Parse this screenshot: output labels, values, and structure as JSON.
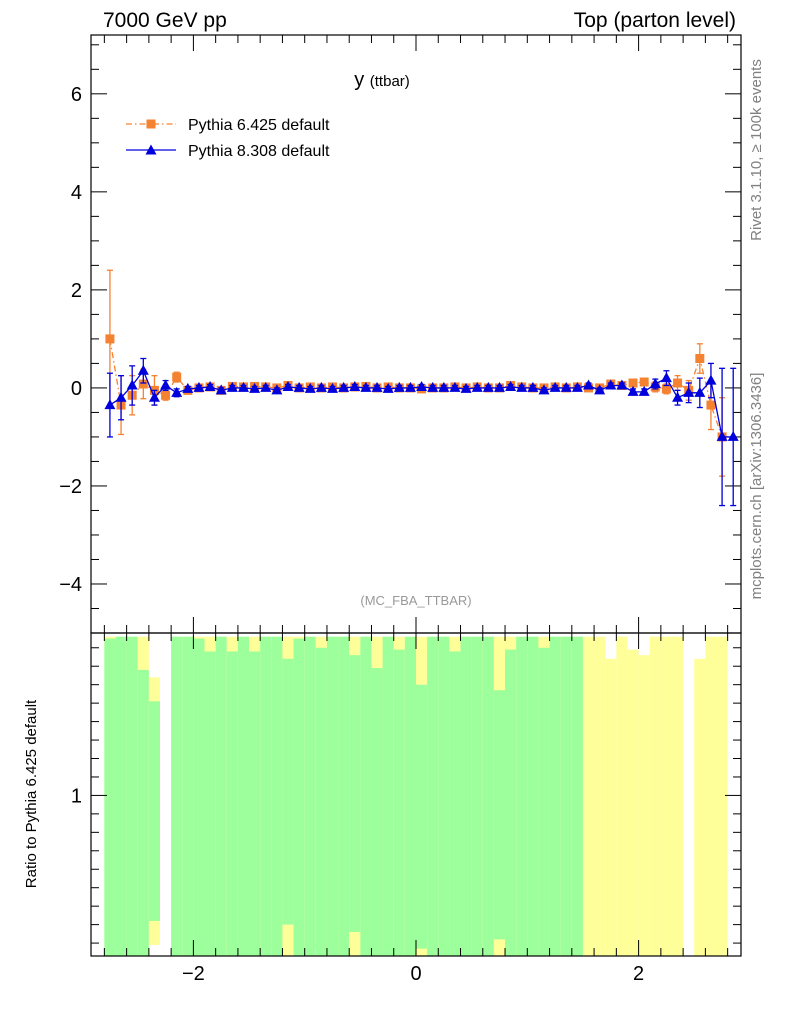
{
  "header": {
    "left": "7000 GeV pp",
    "right": "Top (parton level)"
  },
  "side_text": {
    "rivet": "Rivet 3.1.10, ≥ 100k events",
    "mcplots": "mcplots.cern.ch [arXiv:1306.3436]"
  },
  "colors": {
    "pythia6": "#f58231",
    "pythia8": "#0000dd",
    "band_green": "#9cff9c",
    "band_yellow": "#ffff99"
  },
  "chart_data": [
    {
      "type": "scatter",
      "title": "y",
      "title_suffix": "(ttbar)",
      "watermark": "(MC_FBA_TTBAR)",
      "xlim": [
        -2.92,
        2.92
      ],
      "ylim": [
        -5.0,
        7.2
      ],
      "yticks": [
        -4,
        -2,
        0,
        2,
        4,
        6
      ],
      "legend_position": "top-left",
      "series": [
        {
          "name": "Pythia 6.425 default",
          "marker": "square",
          "line": "dash-dot",
          "x": [
            -2.75,
            -2.65,
            -2.55,
            -2.45,
            -2.35,
            -2.25,
            -2.15,
            -2.05,
            -1.95,
            -1.85,
            -1.75,
            -1.65,
            -1.55,
            -1.45,
            -1.35,
            -1.25,
            -1.15,
            -1.05,
            -0.95,
            -0.85,
            -0.75,
            -0.65,
            -0.55,
            -0.45,
            -0.35,
            -0.25,
            -0.15,
            -0.05,
            0.05,
            0.15,
            0.25,
            0.35,
            0.45,
            0.55,
            0.65,
            0.75,
            0.85,
            0.95,
            1.05,
            1.15,
            1.25,
            1.35,
            1.45,
            1.55,
            1.65,
            1.75,
            1.85,
            1.95,
            2.05,
            2.15,
            2.25,
            2.35,
            2.45,
            2.55,
            2.65,
            2.75
          ],
          "y": [
            1.0,
            -0.35,
            -0.15,
            0.08,
            -0.05,
            -0.15,
            0.22,
            -0.05,
            0.0,
            0.02,
            -0.05,
            0.03,
            0.02,
            0.03,
            0.02,
            0.0,
            0.05,
            0.0,
            0.02,
            0.0,
            0.02,
            0.0,
            0.02,
            0.03,
            0.0,
            0.02,
            0.0,
            0.0,
            -0.02,
            0.0,
            0.0,
            0.02,
            0.0,
            0.02,
            0.0,
            0.0,
            0.05,
            0.02,
            0.0,
            0.0,
            0.02,
            0.0,
            0.02,
            0.0,
            0.0,
            0.08,
            0.05,
            0.1,
            0.12,
            0.02,
            -0.02,
            0.1,
            -0.05,
            0.6,
            -0.35,
            -1.0
          ],
          "err": [
            1.4,
            0.6,
            0.4,
            0.3,
            0.3,
            0.1,
            0.1,
            0.05,
            0.05,
            0.05,
            0.05,
            0.05,
            0.05,
            0.05,
            0.05,
            0.05,
            0.05,
            0.05,
            0.05,
            0.05,
            0.05,
            0.05,
            0.05,
            0.05,
            0.05,
            0.05,
            0.05,
            0.05,
            0.05,
            0.05,
            0.05,
            0.05,
            0.05,
            0.05,
            0.05,
            0.05,
            0.05,
            0.05,
            0.05,
            0.05,
            0.05,
            0.05,
            0.05,
            0.05,
            0.05,
            0.05,
            0.05,
            0.05,
            0.05,
            0.1,
            0.1,
            0.15,
            0.2,
            0.3,
            0.5,
            0.8
          ]
        },
        {
          "name": "Pythia 8.308 default",
          "marker": "triangle",
          "line": "solid",
          "x": [
            -2.75,
            -2.65,
            -2.55,
            -2.45,
            -2.35,
            -2.25,
            -2.15,
            -2.05,
            -1.95,
            -1.85,
            -1.75,
            -1.65,
            -1.55,
            -1.45,
            -1.35,
            -1.25,
            -1.15,
            -1.05,
            -0.95,
            -0.85,
            -0.75,
            -0.65,
            -0.55,
            -0.45,
            -0.35,
            -0.25,
            -0.15,
            -0.05,
            0.05,
            0.15,
            0.25,
            0.35,
            0.45,
            0.55,
            0.65,
            0.75,
            0.85,
            0.95,
            1.05,
            1.15,
            1.25,
            1.35,
            1.45,
            1.55,
            1.65,
            1.75,
            1.85,
            1.95,
            2.05,
            2.15,
            2.25,
            2.35,
            2.45,
            2.55,
            2.65,
            2.75,
            2.85
          ],
          "y": [
            -0.35,
            -0.2,
            0.05,
            0.35,
            -0.2,
            0.05,
            -0.1,
            -0.02,
            0.0,
            0.02,
            -0.05,
            0.0,
            0.0,
            -0.02,
            0.0,
            -0.05,
            0.02,
            0.0,
            -0.02,
            0.0,
            -0.02,
            0.0,
            0.02,
            0.0,
            0.0,
            -0.02,
            0.0,
            0.0,
            0.02,
            0.0,
            0.0,
            0.0,
            -0.02,
            0.0,
            0.0,
            0.0,
            0.02,
            0.0,
            0.0,
            -0.05,
            0.0,
            0.0,
            0.0,
            0.05,
            -0.05,
            0.05,
            0.05,
            -0.08,
            -0.08,
            0.08,
            0.2,
            -0.2,
            -0.1,
            -0.1,
            0.15,
            -1.0,
            -1.0
          ],
          "err": [
            0.65,
            0.45,
            0.4,
            0.25,
            0.15,
            0.1,
            0.08,
            0.05,
            0.05,
            0.05,
            0.05,
            0.05,
            0.05,
            0.05,
            0.05,
            0.05,
            0.05,
            0.05,
            0.05,
            0.05,
            0.05,
            0.05,
            0.05,
            0.05,
            0.05,
            0.05,
            0.05,
            0.05,
            0.05,
            0.05,
            0.05,
            0.05,
            0.05,
            0.05,
            0.05,
            0.05,
            0.05,
            0.05,
            0.05,
            0.05,
            0.05,
            0.05,
            0.05,
            0.05,
            0.05,
            0.05,
            0.05,
            0.06,
            0.06,
            0.1,
            0.15,
            0.15,
            0.2,
            0.3,
            0.35,
            1.4,
            1.4
          ]
        }
      ]
    },
    {
      "type": "area",
      "ylabel": "Ratio to Pythia 6.425 default",
      "xlim": [
        -2.92,
        2.92
      ],
      "xticks": [
        -2,
        0,
        2
      ],
      "ylim": [
        0.13,
        1.88
      ],
      "yticks": [
        1
      ],
      "bins": [
        {
          "x0": -2.8,
          "x1": -2.7,
          "yellow": [
            0.13,
            1.86
          ],
          "green": [
            0.13,
            1.85
          ]
        },
        {
          "x0": -2.7,
          "x1": -2.6,
          "yellow": [
            0.13,
            1.86
          ],
          "green": [
            0.13,
            1.86
          ]
        },
        {
          "x0": -2.6,
          "x1": -2.5,
          "yellow": [
            0.13,
            1.86
          ],
          "green": [
            0.13,
            1.86
          ]
        },
        {
          "x0": -2.5,
          "x1": -2.4,
          "yellow": [
            0.13,
            1.86
          ],
          "green": [
            0.13,
            1.68
          ]
        },
        {
          "x0": -2.4,
          "x1": -2.3,
          "yellow": [
            0.19,
            1.64
          ],
          "green": [
            0.32,
            1.51
          ]
        },
        {
          "x0": -2.2,
          "x1": -2.1,
          "yellow": [
            0.13,
            1.86
          ],
          "green": [
            0.13,
            1.86
          ]
        },
        {
          "x0": -2.1,
          "x1": -2.0,
          "yellow": [
            0.13,
            1.86
          ],
          "green": [
            0.13,
            1.86
          ]
        },
        {
          "x0": -2.0,
          "x1": -1.9,
          "yellow": [
            0.13,
            1.86
          ],
          "green": [
            0.13,
            1.85
          ]
        },
        {
          "x0": -1.9,
          "x1": -1.8,
          "yellow": [
            0.13,
            1.86
          ],
          "green": [
            0.13,
            1.86
          ]
        },
        {
          "x0": -1.8,
          "x1": -1.7,
          "yellow": [
            0.13,
            1.86
          ],
          "green": [
            0.13,
            1.86
          ]
        },
        {
          "x0": -1.7,
          "x1": -1.6,
          "yellow": [
            0.13,
            1.86
          ],
          "green": [
            0.13,
            1.86
          ]
        },
        {
          "x0": -1.6,
          "x1": -1.5,
          "yellow": [
            0.13,
            1.86
          ],
          "green": [
            0.13,
            1.86
          ]
        },
        {
          "x0": -1.5,
          "x1": -1.4,
          "yellow": [
            0.13,
            1.86
          ],
          "green": [
            0.13,
            1.86
          ]
        },
        {
          "x0": -1.4,
          "x1": -1.3,
          "yellow": [
            0.13,
            1.86
          ],
          "green": [
            0.13,
            1.86
          ]
        },
        {
          "x0": -1.3,
          "x1": -1.2,
          "yellow": [
            0.13,
            1.86
          ],
          "green": [
            0.13,
            1.86
          ]
        },
        {
          "x0": -1.2,
          "x1": -1.1,
          "yellow": [
            0.13,
            1.86
          ],
          "green": [
            0.13,
            1.86
          ]
        },
        {
          "x0": -1.1,
          "x1": -1.0,
          "yellow": [
            0.13,
            1.86
          ],
          "green": [
            0.13,
            1.86
          ]
        },
        {
          "x0": -1.0,
          "x1": -0.9,
          "yellow": [
            0.13,
            1.86
          ],
          "green": [
            0.13,
            1.86
          ]
        },
        {
          "x0": -0.9,
          "x1": -0.8,
          "yellow": [
            0.13,
            1.86
          ],
          "green": [
            0.13,
            1.86
          ]
        },
        {
          "x0": -0.8,
          "x1": -0.7,
          "yellow": [
            0.13,
            1.86
          ],
          "green": [
            0.13,
            1.86
          ]
        },
        {
          "x0": -0.7,
          "x1": -0.6,
          "yellow": [
            0.13,
            1.86
          ],
          "green": [
            0.13,
            1.86
          ]
        },
        {
          "x0": -0.6,
          "x1": -0.5,
          "yellow": [
            0.13,
            1.86
          ],
          "green": [
            0.13,
            1.86
          ]
        },
        {
          "x0": -0.5,
          "x1": -0.4,
          "yellow": [
            0.13,
            1.86
          ],
          "green": [
            0.13,
            1.86
          ]
        },
        {
          "x0": -0.4,
          "x1": -0.3,
          "yellow": [
            0.13,
            1.86
          ],
          "green": [
            0.13,
            1.86
          ]
        },
        {
          "x0": -0.3,
          "x1": -0.2,
          "yellow": [
            0.13,
            1.86
          ],
          "green": [
            0.13,
            1.86
          ]
        },
        {
          "x0": -0.2,
          "x1": -0.1,
          "yellow": [
            0.13,
            1.86
          ],
          "green": [
            0.13,
            1.86
          ]
        },
        {
          "x0": -0.1,
          "x1": 0.0,
          "yellow": [
            0.13,
            1.86
          ],
          "green": [
            0.13,
            1.86
          ]
        },
        {
          "x0": 0.0,
          "x1": 0.1,
          "yellow": [
            0.13,
            1.86
          ],
          "green": [
            0.13,
            1.86
          ]
        },
        {
          "x0": 0.1,
          "x1": 0.2,
          "yellow": [
            0.13,
            1.86
          ],
          "green": [
            0.13,
            1.86
          ]
        },
        {
          "x0": 0.2,
          "x1": 0.3,
          "yellow": [
            0.13,
            1.86
          ],
          "green": [
            0.13,
            1.86
          ]
        },
        {
          "x0": 0.3,
          "x1": 0.4,
          "yellow": [
            0.13,
            1.86
          ],
          "green": [
            0.13,
            1.86
          ]
        },
        {
          "x0": 0.4,
          "x1": 0.5,
          "yellow": [
            0.13,
            1.86
          ],
          "green": [
            0.13,
            1.86
          ]
        },
        {
          "x0": 0.5,
          "x1": 0.6,
          "yellow": [
            0.13,
            1.86
          ],
          "green": [
            0.13,
            1.86
          ]
        },
        {
          "x0": 0.6,
          "x1": 0.7,
          "yellow": [
            0.13,
            1.86
          ],
          "green": [
            0.13,
            1.86
          ]
        },
        {
          "x0": 0.7,
          "x1": 0.8,
          "yellow": [
            0.13,
            1.86
          ],
          "green": [
            0.13,
            1.86
          ]
        },
        {
          "x0": 0.8,
          "x1": 0.9,
          "yellow": [
            0.13,
            1.86
          ],
          "green": [
            0.13,
            1.86
          ]
        },
        {
          "x0": 0.9,
          "x1": 1.0,
          "yellow": [
            0.13,
            1.86
          ],
          "green": [
            0.13,
            1.86
          ]
        },
        {
          "x0": 1.0,
          "x1": 1.1,
          "yellow": [
            0.13,
            1.86
          ],
          "green": [
            0.13,
            1.86
          ]
        },
        {
          "x0": 1.1,
          "x1": 1.2,
          "yellow": [
            0.13,
            1.86
          ],
          "green": [
            0.13,
            1.86
          ]
        },
        {
          "x0": 1.2,
          "x1": 1.3,
          "yellow": [
            0.13,
            1.86
          ],
          "green": [
            0.13,
            1.86
          ]
        },
        {
          "x0": 1.3,
          "x1": 1.4,
          "yellow": [
            0.13,
            1.86
          ],
          "green": [
            0.13,
            1.86
          ]
        },
        {
          "x0": 1.4,
          "x1": 1.5,
          "yellow": [
            0.13,
            1.86
          ],
          "green": [
            0.13,
            1.86
          ]
        },
        {
          "x0": 1.5,
          "x1": 1.6,
          "yellow": [
            0.13,
            1.86
          ],
          "green": null
        },
        {
          "x0": 1.6,
          "x1": 1.7,
          "yellow": [
            0.13,
            1.86
          ],
          "green": null
        },
        {
          "x0": 1.7,
          "x1": 1.8,
          "yellow": [
            0.13,
            1.74
          ],
          "green": null
        },
        {
          "x0": 1.8,
          "x1": 1.9,
          "yellow": [
            0.13,
            1.86
          ],
          "green": null
        },
        {
          "x0": 1.9,
          "x1": 2.0,
          "yellow": [
            0.13,
            1.79
          ],
          "green": null
        },
        {
          "x0": 2.0,
          "x1": 2.1,
          "yellow": [
            0.13,
            1.76
          ],
          "green": null
        },
        {
          "x0": 2.1,
          "x1": 2.2,
          "yellow": [
            0.13,
            1.86
          ],
          "green": null
        },
        {
          "x0": 2.2,
          "x1": 2.3,
          "yellow": [
            0.13,
            1.86
          ],
          "green": null
        },
        {
          "x0": 2.3,
          "x1": 2.4,
          "yellow": [
            0.13,
            1.86
          ],
          "green": null
        },
        {
          "x0": 2.5,
          "x1": 2.6,
          "yellow": [
            0.13,
            1.74
          ],
          "green": null
        },
        {
          "x0": 2.6,
          "x1": 2.7,
          "yellow": [
            0.13,
            1.86
          ],
          "green": null
        },
        {
          "x0": 2.7,
          "x1": 2.8,
          "yellow": [
            0.13,
            1.86
          ],
          "green": null
        }
      ],
      "green_notches": [
        {
          "x0": -1.9,
          "x1": -1.8,
          "top": 1.78
        },
        {
          "x0": -1.7,
          "x1": -1.6,
          "top": 1.78
        },
        {
          "x0": -1.5,
          "x1": -1.4,
          "top": 1.78
        },
        {
          "x0": -1.2,
          "x1": -1.1,
          "top": 1.74
        },
        {
          "x0": -1.1,
          "x1": -1.0,
          "top": 1.85
        },
        {
          "x0": -0.9,
          "x1": -0.8,
          "top": 1.8
        },
        {
          "x0": -0.6,
          "x1": -0.5,
          "top": 1.76
        },
        {
          "x0": -0.4,
          "x1": -0.3,
          "top": 1.69
        },
        {
          "x0": -0.2,
          "x1": -0.1,
          "top": 1.79
        },
        {
          "x0": 0.0,
          "x1": 0.1,
          "top": 1.6
        },
        {
          "x0": 0.3,
          "x1": 0.4,
          "top": 1.78
        },
        {
          "x0": 0.7,
          "x1": 0.8,
          "top": 1.57
        },
        {
          "x0": 0.8,
          "x1": 0.9,
          "top": 1.79
        },
        {
          "x0": 1.1,
          "x1": 1.2,
          "top": 1.8
        }
      ],
      "green_bottom_notches": [
        {
          "x0": -1.2,
          "x1": -1.1,
          "bottom": 0.3
        },
        {
          "x0": -0.6,
          "x1": -0.5,
          "bottom": 0.26
        },
        {
          "x0": 0.0,
          "x1": 0.1,
          "bottom": 0.17
        },
        {
          "x0": 0.7,
          "x1": 0.8,
          "bottom": 0.22
        }
      ]
    }
  ]
}
